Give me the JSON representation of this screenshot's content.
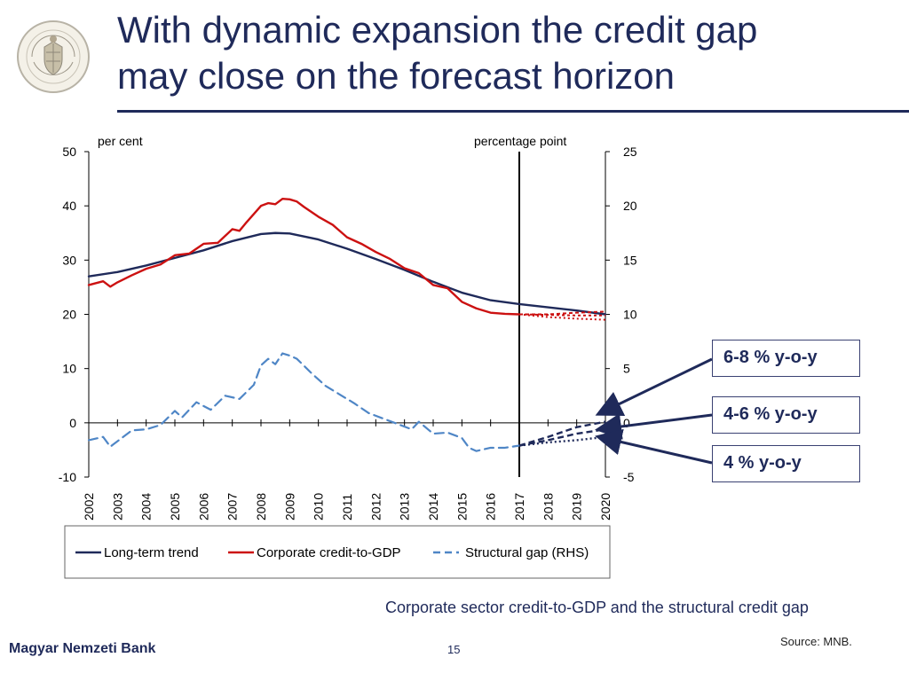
{
  "slide": {
    "title_line_1": "With dynamic expansion the credit gap",
    "title_line_2": "may close on the forecast horizon",
    "logo_text": "MAGYAR NEMZETI BANK",
    "caption": "Corporate sector credit-to-GDP and the structural credit gap",
    "source": "Source: MNB.",
    "footer_bank": "Magyar Nemzeti Bank",
    "page_number": "15",
    "callouts": [
      "6-8 % y-o-y",
      "4-6 % y-o-y",
      "4 % y-o-y"
    ]
  },
  "chart_data": {
    "type": "line",
    "title": "",
    "ylabel_left": "per cent",
    "ylabel_right": "percentage point",
    "x_labels": [
      "2002",
      "2003",
      "2004",
      "2005",
      "2006",
      "2007",
      "2008",
      "2009",
      "2010",
      "2011",
      "2012",
      "2013",
      "2014",
      "2015",
      "2016",
      "2017",
      "2018",
      "2019",
      "2020"
    ],
    "left_axis": {
      "min": -10,
      "max": 50,
      "ticks": [
        -10,
        0,
        10,
        20,
        30,
        40,
        50
      ]
    },
    "right_axis": {
      "min": -5,
      "max": 25,
      "ticks": [
        -5,
        0,
        5,
        10,
        15,
        20,
        25
      ]
    },
    "forecast_start": "2017",
    "legend_position": "bottom",
    "grid": false,
    "series": [
      {
        "name": "Long-term trend",
        "axis": "left",
        "color": "#1f2a5a",
        "style": "solid",
        "points": [
          [
            2002.0,
            27.0
          ],
          [
            2003.0,
            27.8
          ],
          [
            2004.0,
            29.0
          ],
          [
            2005.0,
            30.4
          ],
          [
            2006.0,
            31.8
          ],
          [
            2007.0,
            33.5
          ],
          [
            2008.0,
            34.8
          ],
          [
            2008.5,
            35.0
          ],
          [
            2009.0,
            34.9
          ],
          [
            2010.0,
            33.8
          ],
          [
            2011.0,
            32.1
          ],
          [
            2012.0,
            30.2
          ],
          [
            2013.0,
            28.2
          ],
          [
            2014.0,
            26.0
          ],
          [
            2015.0,
            24.0
          ],
          [
            2016.0,
            22.6
          ],
          [
            2017.0,
            21.9
          ],
          [
            2018.0,
            21.3
          ],
          [
            2019.0,
            20.7
          ],
          [
            2020.0,
            20.0
          ]
        ]
      },
      {
        "name": "Corporate credit-to-GDP",
        "axis": "left",
        "color": "#cc1111",
        "style": "solid",
        "points": [
          [
            2002.0,
            25.4
          ],
          [
            2002.5,
            26.1
          ],
          [
            2002.75,
            25.1
          ],
          [
            2003.0,
            25.9
          ],
          [
            2003.5,
            27.2
          ],
          [
            2004.0,
            28.4
          ],
          [
            2004.5,
            29.2
          ],
          [
            2005.0,
            30.9
          ],
          [
            2005.5,
            31.2
          ],
          [
            2006.0,
            33.0
          ],
          [
            2006.5,
            33.2
          ],
          [
            2007.0,
            35.7
          ],
          [
            2007.25,
            35.4
          ],
          [
            2007.5,
            37.0
          ],
          [
            2008.0,
            40.0
          ],
          [
            2008.25,
            40.5
          ],
          [
            2008.5,
            40.3
          ],
          [
            2008.75,
            41.3
          ],
          [
            2009.0,
            41.2
          ],
          [
            2009.25,
            40.8
          ],
          [
            2009.5,
            39.8
          ],
          [
            2010.0,
            38.0
          ],
          [
            2010.5,
            36.5
          ],
          [
            2011.0,
            34.2
          ],
          [
            2011.5,
            33.0
          ],
          [
            2012.0,
            31.5
          ],
          [
            2012.5,
            30.2
          ],
          [
            2013.0,
            28.5
          ],
          [
            2013.5,
            27.6
          ],
          [
            2014.0,
            25.4
          ],
          [
            2014.5,
            24.8
          ],
          [
            2015.0,
            22.3
          ],
          [
            2015.5,
            21.1
          ],
          [
            2016.0,
            20.3
          ],
          [
            2016.5,
            20.1
          ],
          [
            2017.0,
            20.0
          ]
        ]
      },
      {
        "name": "Structural gap (RHS)",
        "axis": "right",
        "color": "#4f86c6",
        "style": "dashed",
        "points": [
          [
            2002.0,
            -1.6
          ],
          [
            2002.5,
            -1.3
          ],
          [
            2002.75,
            -2.2
          ],
          [
            2003.0,
            -1.7
          ],
          [
            2003.5,
            -0.7
          ],
          [
            2004.0,
            -0.6
          ],
          [
            2004.5,
            -0.2
          ],
          [
            2005.0,
            1.1
          ],
          [
            2005.25,
            0.5
          ],
          [
            2005.75,
            1.9
          ],
          [
            2006.25,
            1.2
          ],
          [
            2006.75,
            2.5
          ],
          [
            2007.25,
            2.2
          ],
          [
            2007.75,
            3.5
          ],
          [
            2008.0,
            5.3
          ],
          [
            2008.25,
            5.9
          ],
          [
            2008.5,
            5.4
          ],
          [
            2008.75,
            6.4
          ],
          [
            2009.0,
            6.2
          ],
          [
            2009.25,
            5.9
          ],
          [
            2009.75,
            4.6
          ],
          [
            2010.25,
            3.4
          ],
          [
            2010.75,
            2.6
          ],
          [
            2011.25,
            1.8
          ],
          [
            2011.75,
            0.9
          ],
          [
            2012.25,
            0.4
          ],
          [
            2012.75,
            -0.1
          ],
          [
            2013.25,
            -0.6
          ],
          [
            2013.5,
            0.1
          ],
          [
            2014.0,
            -1.0
          ],
          [
            2014.5,
            -0.9
          ],
          [
            2015.0,
            -1.4
          ],
          [
            2015.25,
            -2.3
          ],
          [
            2015.5,
            -2.6
          ],
          [
            2016.0,
            -2.3
          ],
          [
            2016.5,
            -2.3
          ],
          [
            2017.0,
            -2.1
          ]
        ]
      }
    ],
    "forecast_scenarios": [
      {
        "name": "6-8 % y-o-y",
        "credit_to_gdp": [
          [
            2017.0,
            20.0
          ],
          [
            2018.0,
            20.0
          ],
          [
            2019.0,
            20.3
          ],
          [
            2020.0,
            20.5
          ]
        ],
        "structural_gap": [
          [
            2017.0,
            -2.1
          ],
          [
            2018.0,
            -1.3
          ],
          [
            2019.0,
            -0.4
          ],
          [
            2020.0,
            0.1
          ]
        ]
      },
      {
        "name": "4-6 % y-o-y",
        "credit_to_gdp": [
          [
            2017.0,
            20.0
          ],
          [
            2018.0,
            19.9
          ],
          [
            2019.0,
            19.8
          ],
          [
            2020.0,
            19.8
          ]
        ],
        "structural_gap": [
          [
            2017.0,
            -2.1
          ],
          [
            2018.0,
            -1.6
          ],
          [
            2019.0,
            -1.0
          ],
          [
            2020.0,
            -0.6
          ]
        ]
      },
      {
        "name": "4 % y-o-y",
        "credit_to_gdp": [
          [
            2017.0,
            20.0
          ],
          [
            2018.0,
            19.5
          ],
          [
            2019.0,
            19.2
          ],
          [
            2020.0,
            19.0
          ]
        ],
        "structural_gap": [
          [
            2017.0,
            -2.1
          ],
          [
            2018.0,
            -1.8
          ],
          [
            2019.0,
            -1.6
          ],
          [
            2020.0,
            -1.3
          ]
        ]
      }
    ]
  }
}
